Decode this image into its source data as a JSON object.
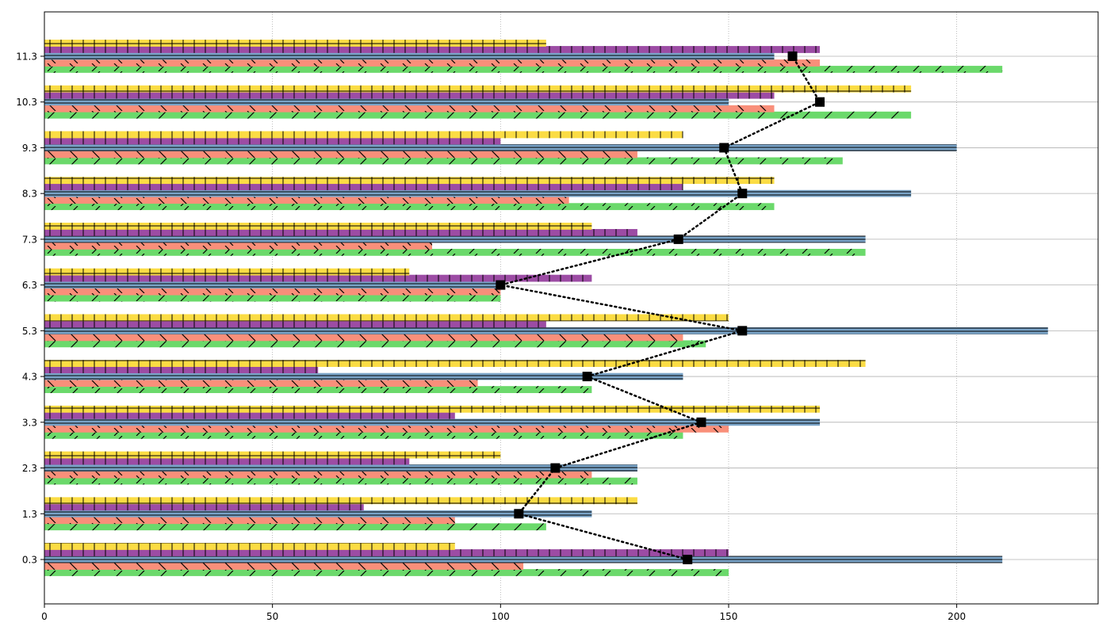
{
  "chart_data": {
    "type": "bar",
    "orientation": "horizontal",
    "title": "",
    "xlabel": "",
    "ylabel": "",
    "xlim": [
      0,
      231
    ],
    "xticks": [
      0,
      50,
      100,
      150,
      200
    ],
    "categories": [
      "0.3",
      "1.3",
      "2.3",
      "3.3",
      "4.3",
      "5.3",
      "6.3",
      "7.3",
      "8.3",
      "9.3",
      "10.3",
      "11.3"
    ],
    "grid": true,
    "legend": "none",
    "series": [
      {
        "color": "#6bd96b",
        "hatch": "slash",
        "values": [
          150,
          110,
          130,
          140,
          120,
          145,
          100,
          180,
          160,
          175,
          190,
          210
        ]
      },
      {
        "color": "#f98f7a",
        "hatch": "backslash",
        "values": [
          105,
          90,
          120,
          150,
          95,
          140,
          100,
          85,
          115,
          130,
          160,
          170
        ]
      },
      {
        "color": "#7aa4c8",
        "hatch": "horizontal",
        "values": [
          210,
          120,
          130,
          170,
          140,
          220,
          100,
          180,
          190,
          200,
          150,
          160
        ]
      },
      {
        "color": "#9c4ca4",
        "hatch": "vertical",
        "values": [
          150,
          70,
          80,
          90,
          60,
          110,
          120,
          130,
          140,
          100,
          160,
          170
        ]
      },
      {
        "color": "#fbdc44",
        "hatch": "plus",
        "values": [
          90,
          130,
          100,
          170,
          180,
          150,
          80,
          120,
          160,
          140,
          190,
          110
        ]
      }
    ],
    "line": {
      "color": "#000000",
      "style": "dotted",
      "marker": "square",
      "values": [
        141,
        104,
        112,
        144,
        119,
        153,
        100,
        139,
        153,
        149,
        170,
        164
      ]
    }
  }
}
